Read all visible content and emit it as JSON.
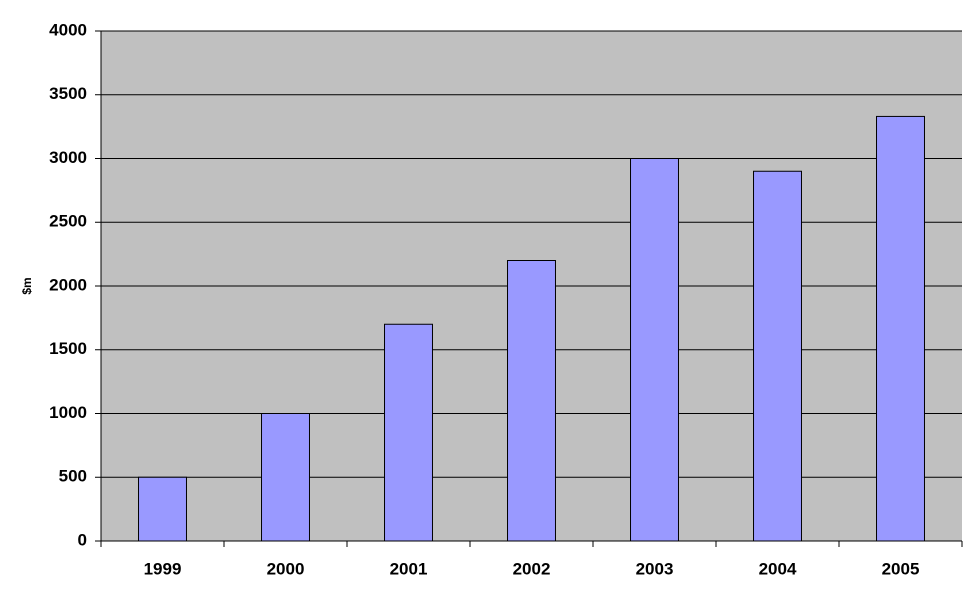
{
  "chart_data": {
    "type": "bar",
    "y_label": "$m",
    "categories": [
      "1999",
      "2000",
      "2001",
      "2002",
      "2003",
      "2004",
      "2005"
    ],
    "values": [
      500,
      1000,
      1700,
      2200,
      3000,
      2900,
      3330
    ],
    "color": "#9999ff",
    "ylim": [
      0,
      4000
    ],
    "yticks": [
      0,
      500,
      1000,
      1500,
      2000,
      2500,
      3000,
      3500,
      4000
    ],
    "grid": true
  }
}
